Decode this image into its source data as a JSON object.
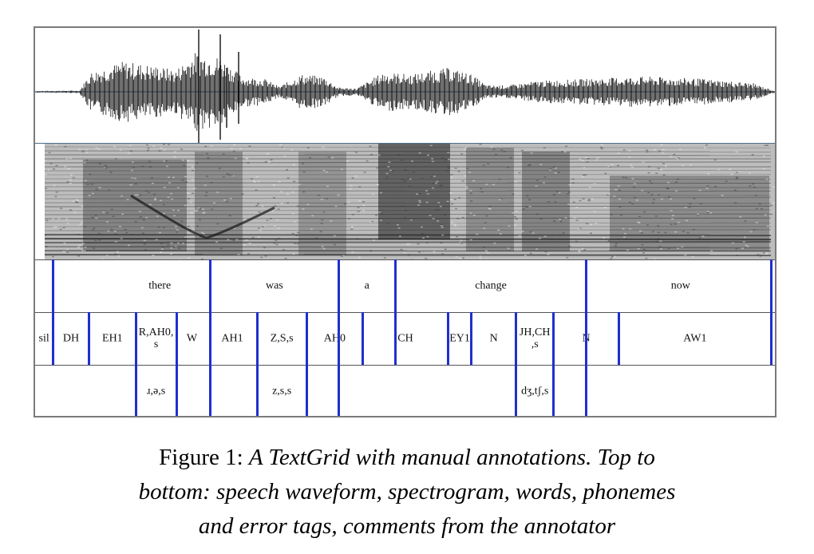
{
  "figure": {
    "words": [
      {
        "label": "there",
        "start": 0.1,
        "end": 0.237
      },
      {
        "label": "was",
        "start": 0.237,
        "end": 0.41
      },
      {
        "label": "a",
        "start": 0.41,
        "end": 0.487
      },
      {
        "label": "change",
        "start": 0.487,
        "end": 0.745
      },
      {
        "label": "now",
        "start": 0.745,
        "end": 1.0
      }
    ],
    "phonemes": [
      {
        "label": "sil",
        "start": 0.0,
        "end": 0.024
      },
      {
        "label": "DH",
        "start": 0.024,
        "end": 0.073
      },
      {
        "label": "EH1",
        "start": 0.073,
        "end": 0.136
      },
      {
        "label": "R,AH0,\ns",
        "start": 0.136,
        "end": 0.191
      },
      {
        "label": "W",
        "start": 0.191,
        "end": 0.233
      },
      {
        "label": "AH1",
        "start": 0.233,
        "end": 0.3
      },
      {
        "label": "Z,S,s",
        "start": 0.3,
        "end": 0.367
      },
      {
        "label": "AH0",
        "start": 0.367,
        "end": 0.443
      },
      {
        "label": "CH",
        "start": 0.443,
        "end": 0.558
      },
      {
        "label": "EY1",
        "start": 0.558,
        "end": 0.59
      },
      {
        "label": "N",
        "start": 0.59,
        "end": 0.65
      },
      {
        "label": "JH,CH\n,s",
        "start": 0.65,
        "end": 0.701
      },
      {
        "label": "N",
        "start": 0.701,
        "end": 0.789
      },
      {
        "label": "AW1",
        "start": 0.789,
        "end": 0.995
      }
    ],
    "comments": [
      {
        "label": "ɹ,ə,s",
        "start": 0.136,
        "end": 0.191
      },
      {
        "label": "z,s,s",
        "start": 0.3,
        "end": 0.367
      },
      {
        "label": "dʒ,tʃ,s",
        "start": 0.65,
        "end": 0.701
      }
    ]
  },
  "caption": {
    "prefix": "Figure 1: ",
    "line1": "A TextGrid with manual annotations. Top to",
    "line2": "bottom: speech waveform, spectrogram, words, phonemes",
    "line3": "and error tags, comments from the annotator"
  }
}
